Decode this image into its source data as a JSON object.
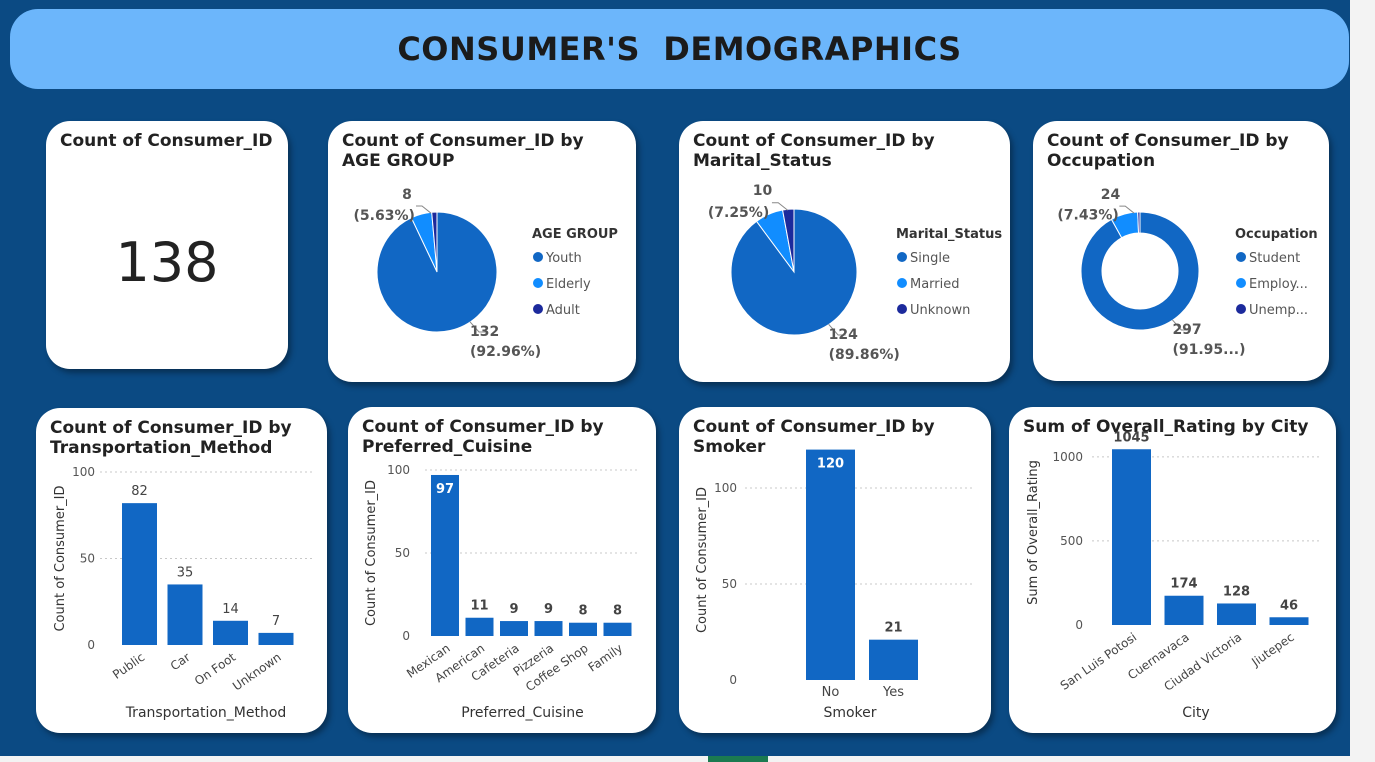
{
  "header": {
    "title": "CONSUMER'S  DEMOGRAPHICS"
  },
  "colors": {
    "primary": "#1167c4",
    "secondary": "#118dff",
    "tertiary": "#1c2a9c",
    "banner": "#6cb6fb",
    "canvas": "#0b4a83"
  },
  "kpi": {
    "title": "Count of Consumer_ID",
    "value": "138"
  },
  "chart_data": [
    {
      "type": "pie",
      "title": "Count of Consumer_ID by AGE GROUP",
      "legend_title": "AGE GROUP",
      "legend_position": "right",
      "categories": [
        "Youth",
        "Elderly",
        "Adult"
      ],
      "values": [
        132,
        8,
        2
      ],
      "labels": [
        {
          "value": "132",
          "pct": "(92.96%)"
        },
        {
          "value": "8",
          "pct": "(5.63%)"
        }
      ]
    },
    {
      "type": "pie",
      "title": "Count of Consumer_ID by Marital_Status",
      "legend_title": "Marital_Status",
      "legend_position": "right",
      "categories": [
        "Single",
        "Married",
        "Unknown"
      ],
      "values": [
        124,
        10,
        4
      ],
      "labels": [
        {
          "value": "124",
          "pct": "(89.86%)"
        },
        {
          "value": "10",
          "pct": "(7.25%)"
        }
      ]
    },
    {
      "type": "donut",
      "title": "Count of Consumer_ID by Occupation",
      "legend_title": "Occupation",
      "legend_position": "right",
      "categories": [
        "Student",
        "Employ...",
        "Unemp..."
      ],
      "values": [
        297,
        24,
        2
      ],
      "labels": [
        {
          "value": "297",
          "pct": "(91.95...)"
        },
        {
          "value": "24",
          "pct": "(7.43%)"
        }
      ]
    },
    {
      "type": "bar",
      "title": "Count of Consumer_ID by Transportation_Method",
      "xlabel": "Transportation_Method",
      "ylabel": "Count of Consumer_ID",
      "categories": [
        "Public",
        "Car",
        "On Foot",
        "Unknown"
      ],
      "values": [
        82,
        35,
        14,
        7
      ],
      "ylim": [
        0,
        100
      ],
      "yticks": [
        0,
        50,
        100
      ],
      "grid": true
    },
    {
      "type": "bar",
      "title": "Count of Consumer_ID by Preferred_Cuisine",
      "xlabel": "Preferred_Cuisine",
      "ylabel": "Count of Consumer_ID",
      "categories": [
        "Mexican",
        "American",
        "Cafeteria",
        "Pizzeria",
        "Coffee Shop",
        "Family"
      ],
      "values": [
        97,
        11,
        9,
        9,
        8,
        8
      ],
      "ylim": [
        0,
        100
      ],
      "yticks": [
        0,
        50,
        100
      ],
      "grid": true
    },
    {
      "type": "bar",
      "title": "Count of Consumer_ID by Smoker",
      "xlabel": "Smoker",
      "ylabel": "Count of Consumer_ID",
      "categories": [
        "No",
        "Yes"
      ],
      "values": [
        120,
        21
      ],
      "ylim": [
        0,
        125
      ],
      "yticks": [
        0,
        50,
        100
      ],
      "grid": true
    },
    {
      "type": "bar",
      "title": "Sum of Overall_Rating by City",
      "xlabel": "City",
      "ylabel": "Sum of Overall_Rating",
      "categories": [
        "San Luis Potosi",
        "Cuernavaca",
        "Ciudad Victoria",
        "Jiutepec"
      ],
      "values": [
        1045,
        174,
        128,
        46
      ],
      "ylim": [
        0,
        1100
      ],
      "yticks": [
        0,
        500,
        1000
      ],
      "grid": true
    }
  ]
}
